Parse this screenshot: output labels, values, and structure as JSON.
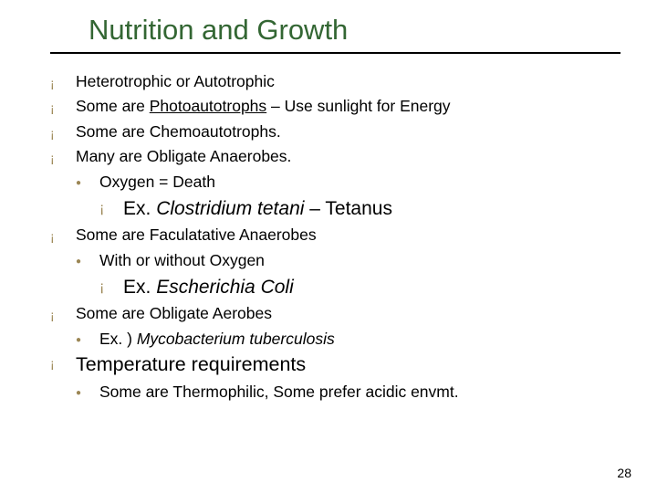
{
  "colors": {
    "title": "#336633",
    "bullet": "#9b8654",
    "text": "#000000",
    "background": "#ffffff",
    "rule": "#000000"
  },
  "fonts": {
    "title_size": 31,
    "body_size": 17.5,
    "big_size": 21.5,
    "l3_size": 21
  },
  "title": "Nutrition and Growth",
  "b1": "Heterotrophic or Autotrophic",
  "b2a": "Some are ",
  "b2u": "Photoautotrophs",
  "b2b": " – Use sunlight for Energy",
  "b3": "Some are Chemoautotrophs.",
  "b4": "Many are Obligate Anaerobes.",
  "b4s1": "Oxygen = Death",
  "b4x_pre": "Ex. ",
  "b4x_i": "Clostridium tetani",
  "b4x_post": " – Tetanus",
  "b5": "Some are Faculatative Anaerobes",
  "b5s1": "With or without Oxygen",
  "b5x_pre": "Ex. ",
  "b5x_i": "Escherichia Coli",
  "b6": "Some are Obligate Aerobes",
  "b6s1_pre": "Ex. ) ",
  "b6s1_i": "Mycobacterium tuberculosis",
  "b7": "Temperature requirements",
  "b7s1": "Some are Thermophilic, Some prefer acidic envmt.",
  "page": "28"
}
